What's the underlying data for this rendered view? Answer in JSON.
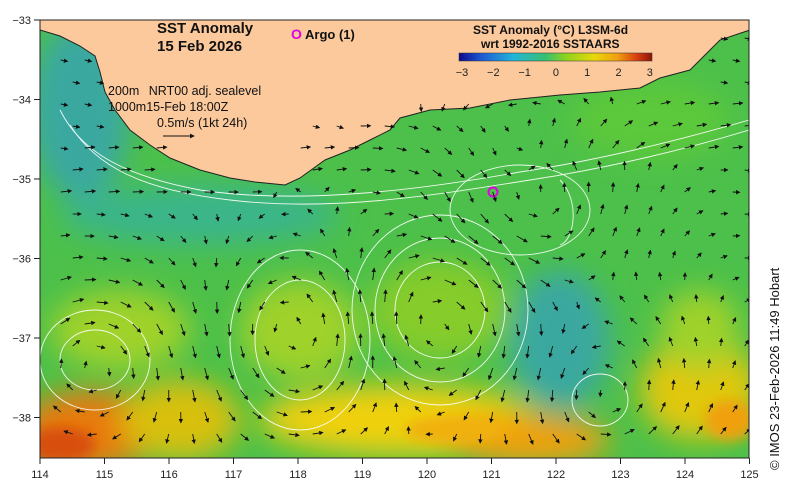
{
  "title": {
    "line1": "SST Anomaly",
    "line2": "15 Feb 2026"
  },
  "argo": {
    "symbol": "O",
    "label": "Argo (1)",
    "color": "#e000e0"
  },
  "colorbar": {
    "title": "SST Anomaly (°C) L3SM-6d",
    "subtitle": "wrt 1992-2016 SSTAARS",
    "ticks": [
      "−3",
      "−2",
      "−1",
      "0",
      "1",
      "2",
      "3"
    ],
    "colors": [
      "#0a0a8c",
      "#1f5bd6",
      "#22b5d8",
      "#38c070",
      "#8cd21e",
      "#e8d80a",
      "#f0a010",
      "#d84010",
      "#8c1408"
    ]
  },
  "legend": {
    "line1_depth": "200m",
    "line1_desc": "NRT00 adj. sealevel",
    "line2_depth": "1000m",
    "line2_desc": "15-Feb 18:00Z",
    "line3": "0.5m/s (1kt 24h)"
  },
  "axes": {
    "x_ticks": [
      "114",
      "115",
      "116",
      "117",
      "118",
      "119",
      "120",
      "121",
      "122",
      "123",
      "124",
      "125"
    ],
    "y_ticks": [
      "−33",
      "−34",
      "−35",
      "−36",
      "−37",
      "−38"
    ]
  },
  "copyright": "© IMOS 23-Feb-2026 11:49 Hobart",
  "colors": {
    "land": "#fbc99c",
    "ocean_base": "#4cc04a",
    "contour": "#ffffff",
    "arrow": "#111111"
  }
}
